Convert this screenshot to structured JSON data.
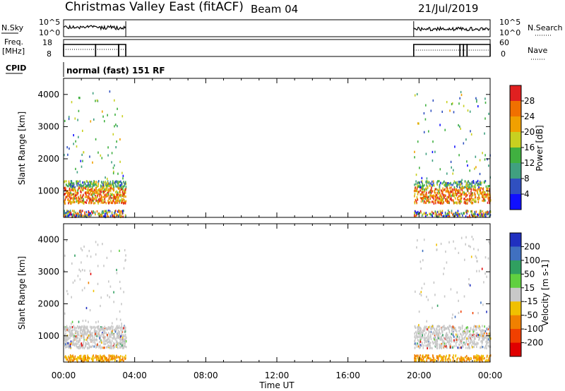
{
  "header": {
    "title": "Christmas Valley East (fitACF)",
    "beam": "Beam 04",
    "date": "21/Jul/2019"
  },
  "top_labels": {
    "nsky": "N.Sky",
    "nsky_hi": "10^5",
    "nsky_lo": "10^0",
    "nsearch": "N.Search",
    "nsearch_hi": "10^5",
    "nsearch_lo": "10^0",
    "freq": "Freq.",
    "freq_unit": "[MHz]",
    "freq_hi": "18",
    "freq_lo": "8",
    "nave": "Nave",
    "nave_hi": "60",
    "nave_lo": "0",
    "cpid": "CPID",
    "cpid_text": "normal (fast) 151 RF"
  },
  "chart_data": [
    {
      "type": "heatmap",
      "panel": "power",
      "ylabel": "Slant Range [km]",
      "ylim": [
        180,
        4500
      ],
      "yticks": [
        1000,
        2000,
        3000,
        4000
      ],
      "xlim": [
        0,
        24
      ],
      "colorbar_label": "Power [dB]",
      "colorbar_ticks": [
        "4",
        "8",
        "12",
        "16",
        "20",
        "24",
        "28"
      ],
      "colorbar_colors": [
        "#1010ff",
        "#3050c0",
        "#40a080",
        "#40b040",
        "#c8d020",
        "#f0a000",
        "#f07000",
        "#e02020"
      ],
      "regions": [
        {
          "x": [
            0.0,
            3.5
          ],
          "y": [
            200,
            1350
          ]
        },
        {
          "x": [
            19.7,
            24.0
          ],
          "y": [
            200,
            1350
          ]
        }
      ]
    },
    {
      "type": "heatmap",
      "panel": "velocity",
      "ylabel": "Slant Range [km]",
      "ylim": [
        180,
        4500
      ],
      "yticks": [
        1000,
        2000,
        3000,
        4000
      ],
      "xlim": [
        0,
        24
      ],
      "xticks": [
        "00:00",
        "04:00",
        "08:00",
        "12:00",
        "16:00",
        "20:00",
        "00:00"
      ],
      "xlabel": "Time UT",
      "colorbar_label": "Velocity [m s-1]",
      "colorbar_ticks": [
        "200",
        "100",
        "50",
        "15",
        "-15",
        "-50",
        "-100",
        "-200"
      ],
      "colorbar_colors": [
        "#2030c0",
        "#4070c0",
        "#30a060",
        "#60d040",
        "#c8c8c8",
        "#f0c000",
        "#f08000",
        "#f04000",
        "#e00000"
      ],
      "regions": [
        {
          "x": [
            0.0,
            3.5
          ],
          "y": [
            200,
            1300
          ]
        },
        {
          "x": [
            19.7,
            24.0
          ],
          "y": [
            200,
            1300
          ]
        }
      ]
    }
  ]
}
